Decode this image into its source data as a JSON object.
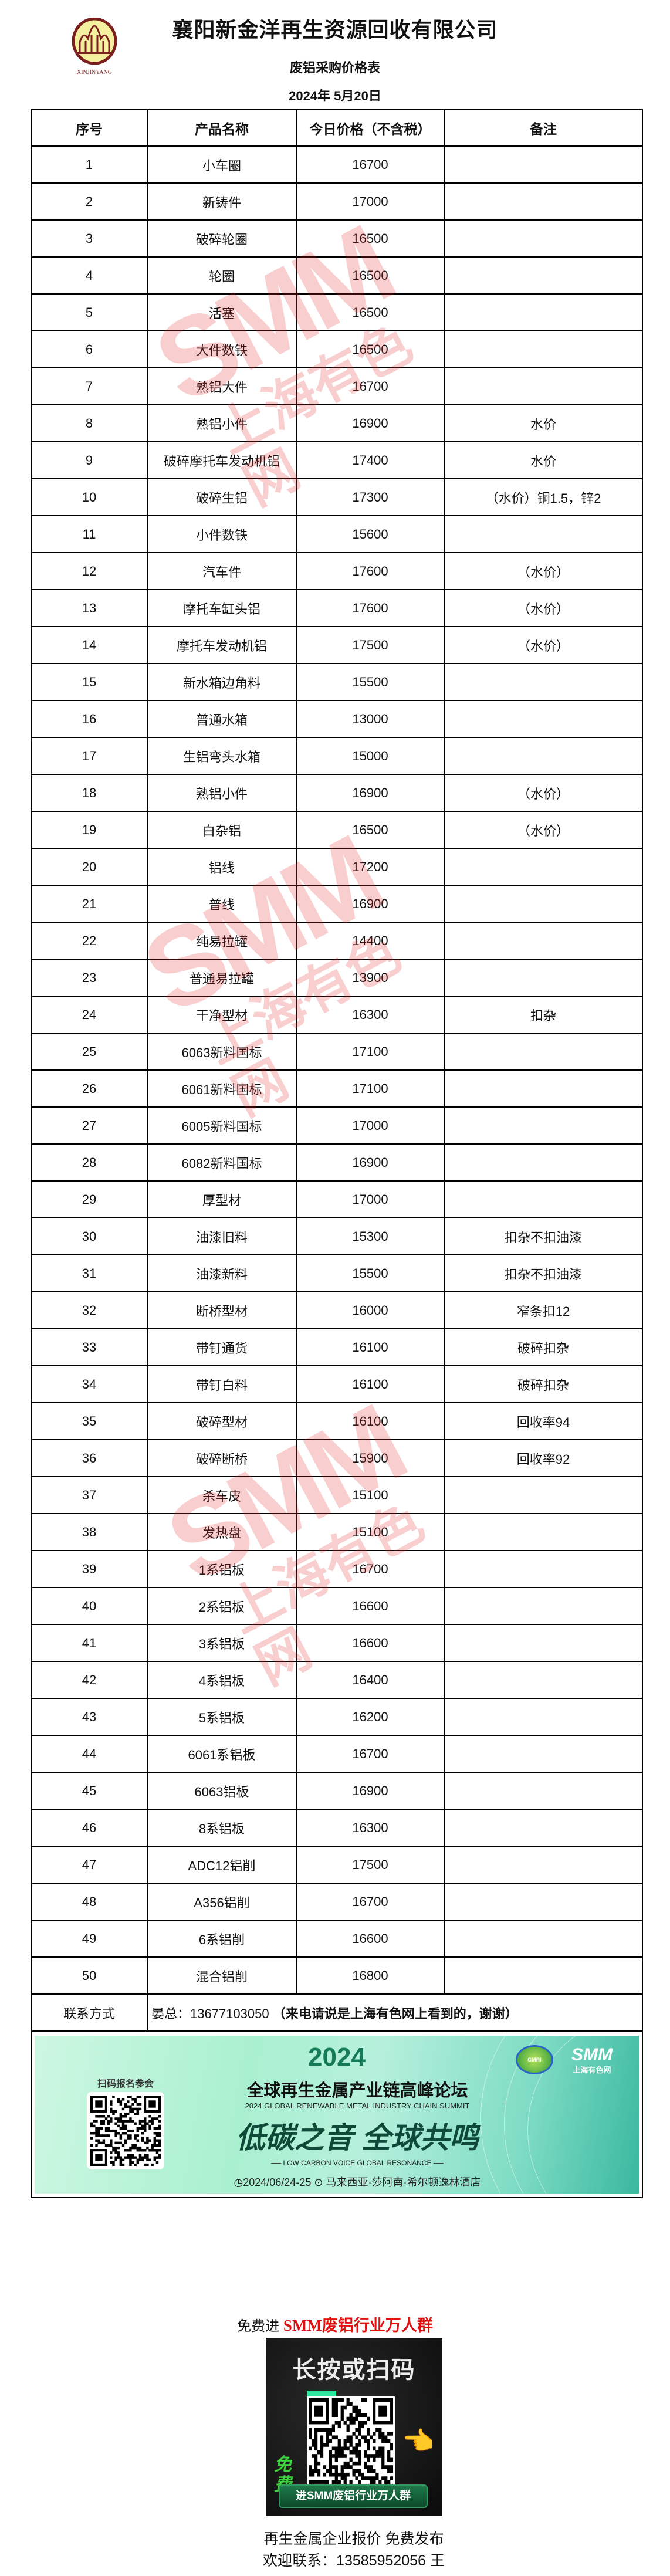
{
  "header": {
    "logo_text": "XINJINYANG",
    "company": "襄阳新金洋再生资源回收有限公司",
    "subtitle": "废铝采购价格表",
    "date": "2024年 5月20日"
  },
  "table": {
    "columns": [
      "序号",
      "产品名称",
      "今日价格（不含税）",
      "备注"
    ],
    "rows": [
      {
        "no": "1",
        "name": "小车圈",
        "price": "16700",
        "note": ""
      },
      {
        "no": "2",
        "name": "新铸件",
        "price": "17000",
        "note": ""
      },
      {
        "no": "3",
        "name": "破碎轮圈",
        "price": "16500",
        "note": ""
      },
      {
        "no": "4",
        "name": "轮圈",
        "price": "16500",
        "note": ""
      },
      {
        "no": "5",
        "name": "活塞",
        "price": "16500",
        "note": ""
      },
      {
        "no": "6",
        "name": "大件数铁",
        "price": "16500",
        "note": ""
      },
      {
        "no": "7",
        "name": "熟铝大件",
        "price": "16700",
        "note": ""
      },
      {
        "no": "8",
        "name": "熟铝小件",
        "price": "16900",
        "note": "水价"
      },
      {
        "no": "9",
        "name": "破碎摩托车发动机铝",
        "price": "17400",
        "note": "水价"
      },
      {
        "no": "10",
        "name": "破碎生铝",
        "price": "17300",
        "note": "（水价）铜1.5，锌2"
      },
      {
        "no": "11",
        "name": "小件数铁",
        "price": "15600",
        "note": ""
      },
      {
        "no": "12",
        "name": "汽车件",
        "price": "17600",
        "note": "（水价）"
      },
      {
        "no": "13",
        "name": "摩托车缸头铝",
        "price": "17600",
        "note": "（水价）"
      },
      {
        "no": "14",
        "name": "摩托车发动机铝",
        "price": "17500",
        "note": "（水价）"
      },
      {
        "no": "15",
        "name": "新水箱边角料",
        "price": "15500",
        "note": ""
      },
      {
        "no": "16",
        "name": "普通水箱",
        "price": "13000",
        "note": ""
      },
      {
        "no": "17",
        "name": "生铝弯头水箱",
        "price": "15000",
        "note": ""
      },
      {
        "no": "18",
        "name": "熟铝小件",
        "price": "16900",
        "note": "（水价）"
      },
      {
        "no": "19",
        "name": "白杂铝",
        "price": "16500",
        "note": "（水价）"
      },
      {
        "no": "20",
        "name": "铝线",
        "price": "17200",
        "note": ""
      },
      {
        "no": "21",
        "name": "普线",
        "price": "16900",
        "note": ""
      },
      {
        "no": "22",
        "name": "纯易拉罐",
        "price": "14400",
        "note": ""
      },
      {
        "no": "23",
        "name": "普通易拉罐",
        "price": "13900",
        "note": ""
      },
      {
        "no": "24",
        "name": "干净型材",
        "price": "16300",
        "note": "扣杂"
      },
      {
        "no": "25",
        "name": "6063新料国标",
        "price": "17100",
        "note": ""
      },
      {
        "no": "26",
        "name": "6061新料国标",
        "price": "17100",
        "note": ""
      },
      {
        "no": "27",
        "name": "6005新料国标",
        "price": "17000",
        "note": ""
      },
      {
        "no": "28",
        "name": "6082新料国标",
        "price": "16900",
        "note": ""
      },
      {
        "no": "29",
        "name": "厚型材",
        "price": "17000",
        "note": ""
      },
      {
        "no": "30",
        "name": "油漆旧料",
        "price": "15300",
        "note": "扣杂不扣油漆"
      },
      {
        "no": "31",
        "name": "油漆新料",
        "price": "15500",
        "note": "扣杂不扣油漆"
      },
      {
        "no": "32",
        "name": "断桥型材",
        "price": "16000",
        "note": "窄条扣12"
      },
      {
        "no": "33",
        "name": "带钉通货",
        "price": "16100",
        "note": "破碎扣杂"
      },
      {
        "no": "34",
        "name": "带钉白料",
        "price": "16100",
        "note": "破碎扣杂"
      },
      {
        "no": "35",
        "name": "破碎型材",
        "price": "16100",
        "note": "回收率94"
      },
      {
        "no": "36",
        "name": "破碎断桥",
        "price": "15900",
        "note": "回收率92"
      },
      {
        "no": "37",
        "name": "杀车皮",
        "price": "15100",
        "note": ""
      },
      {
        "no": "38",
        "name": "发热盘",
        "price": "15100",
        "note": ""
      },
      {
        "no": "39",
        "name": "1系铝板",
        "price": "16700",
        "note": ""
      },
      {
        "no": "40",
        "name": "2系铝板",
        "price": "16600",
        "note": ""
      },
      {
        "no": "41",
        "name": "3系铝板",
        "price": "16600",
        "note": ""
      },
      {
        "no": "42",
        "name": "4系铝板",
        "price": "16400",
        "note": ""
      },
      {
        "no": "43",
        "name": "5系铝板",
        "price": "16200",
        "note": ""
      },
      {
        "no": "44",
        "name": "6061系铝板",
        "price": "16700",
        "note": ""
      },
      {
        "no": "45",
        "name": "6063铝板",
        "price": "16900",
        "note": ""
      },
      {
        "no": "46",
        "name": "8系铝板",
        "price": "16300",
        "note": ""
      },
      {
        "no": "47",
        "name": "ADC12铝削",
        "price": "17500",
        "note": ""
      },
      {
        "no": "48",
        "name": "A356铝削",
        "price": "16700",
        "note": ""
      },
      {
        "no": "49",
        "name": "6系铝削",
        "price": "16600",
        "note": ""
      },
      {
        "no": "50",
        "name": "混合铝削",
        "price": "16800",
        "note": ""
      }
    ],
    "contact_label": "联系方式",
    "contact_value": "晏总：13677103050 ",
    "contact_note": "（来电请说是上海有色网上看到的，谢谢）"
  },
  "banner": {
    "year": "2024",
    "scan_label": "扫码报名参会",
    "title_cn": "全球再生金属产业链高峰论坛",
    "title_en": "2024 GLOBAL RENEWABLE METAL INDUSTRY CHAIN SUMMIT",
    "slogan_cn": "低碳之音 全球共鸣",
    "slogan_en": "LOW CARBON VOICE GLOBAL RESONANCE",
    "date": "2024/06/24-25",
    "venue": "马来西亚·莎阿南·希尔顿逸林酒店",
    "gmri_logo": "GMRI",
    "smm_logo": "SMM",
    "smm_logo_cn": "上海有色网"
  },
  "watermark": {
    "text": "SMM",
    "text_cn": "上海有色网",
    "color": "#e8262a"
  },
  "promo": {
    "prefix": "免费进 ",
    "highlight": "SMM废铝行业万人群",
    "image_title": "长按或扫码",
    "image_free": "免费",
    "image_button": "进SMM废铝行业万人群",
    "footer_line1": "再生金属企业报价 免费发布",
    "footer_line2": "欢迎联系：13585952056 王"
  },
  "colors": {
    "accent_red": "#e01010",
    "banner_green": "#a9f0d0",
    "logo_brown": "#7a1e1e",
    "logo_yellow": "#f5f0a0"
  }
}
